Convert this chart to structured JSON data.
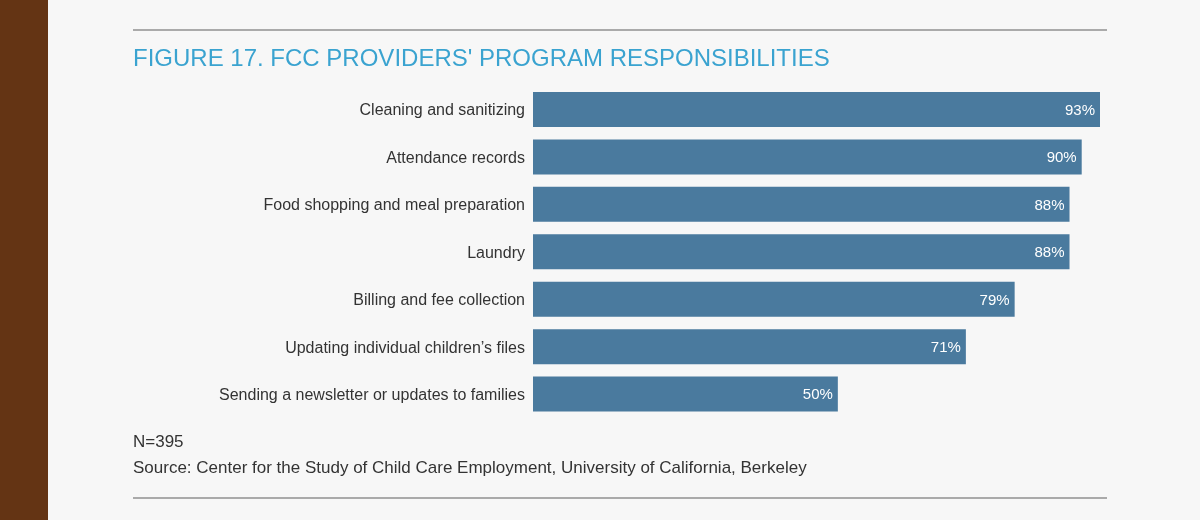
{
  "chart_data": {
    "type": "bar",
    "orientation": "horizontal",
    "title": "FIGURE 17. FCC PROVIDERS' PROGRAM RESPONSIBILITIES",
    "categories": [
      "Cleaning and sanitizing",
      "Attendance records",
      "Food shopping and meal preparation",
      "Laundry",
      "Billing and fee collection",
      "Updating individual children’s files",
      "Sending a newsletter or updates to families"
    ],
    "values": [
      93,
      90,
      88,
      88,
      79,
      71,
      50
    ],
    "value_labels": [
      "93%",
      "90%",
      "88%",
      "88%",
      "79%",
      "71%",
      "50%"
    ],
    "color": "#4a7a9e",
    "tick_labels": "y",
    "annotations": [
      "N=395",
      "Source: Center for the Study of Child Care Employment, University of California, Berkeley"
    ]
  }
}
